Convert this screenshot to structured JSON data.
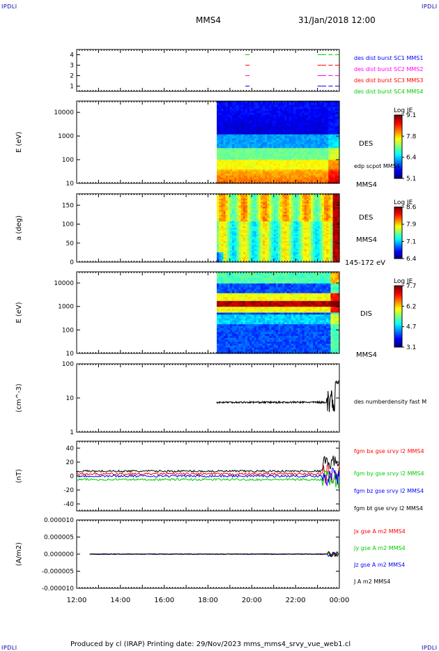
{
  "corners": {
    "tl": "IPDLI",
    "tr": "IPDLI",
    "bl": "IPDLI",
    "br": "IPDLI"
  },
  "header": {
    "spacecraft": "MMS4",
    "datetime": "31/Jan/2018 12:00"
  },
  "footer": {
    "text": "Produced by cl (IRAP)   Printing date: 29/Nov/2023   mms_mms4_srvy_vue_web1.cl"
  },
  "chart_data": [
    {
      "type": "scatter",
      "panel": "availability",
      "yticks": [
        "1",
        "2",
        "3",
        "4"
      ],
      "ylim": [
        0.5,
        4.5
      ],
      "legend": [
        {
          "label": "des dist burst SC1 MMS1",
          "color": "#0000ff"
        },
        {
          "label": "des dist burst SC2 MMS2",
          "color": "#ff00ff"
        },
        {
          "label": "des dist burst SC3 MMS3",
          "color": "#ff0000"
        },
        {
          "label": "des dist burst SC4 MMS4",
          "color": "#00cc00"
        }
      ],
      "x_hours": [
        19.8,
        23.1,
        23.3,
        23.6,
        23.9
      ],
      "levels": [
        1,
        2,
        3,
        4
      ]
    },
    {
      "type": "heatmap",
      "panel": "des-energy",
      "ylabel": "E (eV)",
      "scale": "log",
      "ylim": [
        10,
        30000
      ],
      "yticks": [
        "10",
        "100",
        "1000",
        "10000"
      ],
      "labels": [
        "DES",
        "edp scpot MMS4",
        "MMS4"
      ],
      "colorbar": {
        "title": "Log JE",
        "ticks": [
          "9.1",
          "7.8",
          "6.4",
          "5.1"
        ],
        "range": [
          5.1,
          9.1
        ]
      },
      "data_start_hour": 18.4
    },
    {
      "type": "heatmap",
      "panel": "des-pitch",
      "ylabel": "a (deg)",
      "ylim": [
        0,
        180
      ],
      "yticks": [
        "0",
        "50",
        "100",
        "150"
      ],
      "labels": [
        "DES",
        "MMS4",
        "145-172 eV"
      ],
      "colorbar": {
        "title": "Log JE",
        "ticks": [
          "8.6",
          "7.9",
          "7.1",
          "6.4"
        ],
        "range": [
          6.4,
          8.6
        ]
      },
      "data_start_hour": 18.4
    },
    {
      "type": "heatmap",
      "panel": "dis-energy",
      "ylabel": "E (eV)",
      "scale": "log",
      "ylim": [
        10,
        30000
      ],
      "yticks": [
        "10",
        "100",
        "1000",
        "10000"
      ],
      "labels": [
        "DIS",
        "MMS4"
      ],
      "colorbar": {
        "title": "Log JE",
        "ticks": [
          "7.7",
          "6.2",
          "4.7",
          "3.1"
        ],
        "range": [
          3.1,
          7.7
        ]
      },
      "data_start_hour": 18.4
    },
    {
      "type": "line",
      "panel": "density",
      "ylabel": "(cm^-3)",
      "scale": "log",
      "ylim": [
        1,
        100
      ],
      "yticks": [
        "1",
        "10",
        "100"
      ],
      "series": [
        {
          "name": "des numberdensity fast M",
          "color": "#000000",
          "approx_level": 7.5
        }
      ]
    },
    {
      "type": "line",
      "panel": "magnetic-field",
      "ylabel": "(nT)",
      "ylim": [
        -50,
        50
      ],
      "yticks": [
        "-40",
        "-20",
        "0",
        "20",
        "40"
      ],
      "series": [
        {
          "name": "fgm bx gse srvy l2 MMS4",
          "color": "#ff0000",
          "approx_level": 3
        },
        {
          "name": "fgm by gse srvy l2 MMS4",
          "color": "#00cc00",
          "approx_level": -5
        },
        {
          "name": "fgm bz gse srvy l2 MMS4",
          "color": "#0000ff",
          "approx_level": 0
        },
        {
          "name": "fgm bt gse srvy l2 MMS4",
          "color": "#000000",
          "approx_level": 7
        }
      ]
    },
    {
      "type": "line",
      "panel": "current-density",
      "ylabel": "(A/m2)",
      "ylim": [
        -1e-05,
        1e-05
      ],
      "yticks": [
        "0.000010",
        "0.000005",
        "0.000000",
        "-0.000005",
        "-0.000010"
      ],
      "series": [
        {
          "name": "Jx gse A m2 MMS4",
          "color": "#ff0000"
        },
        {
          "name": "Jy gse A m2 MMS4",
          "color": "#00cc00"
        },
        {
          "name": "Jz gse A m2 MMS4",
          "color": "#0000ff"
        },
        {
          "name": "J A m2 MMS4",
          "color": "#000000"
        }
      ]
    }
  ],
  "xaxis": {
    "ticks": [
      "12:00",
      "14:00",
      "16:00",
      "18:00",
      "20:00",
      "22:00",
      "00:00"
    ],
    "range_hours": [
      12,
      24
    ]
  }
}
